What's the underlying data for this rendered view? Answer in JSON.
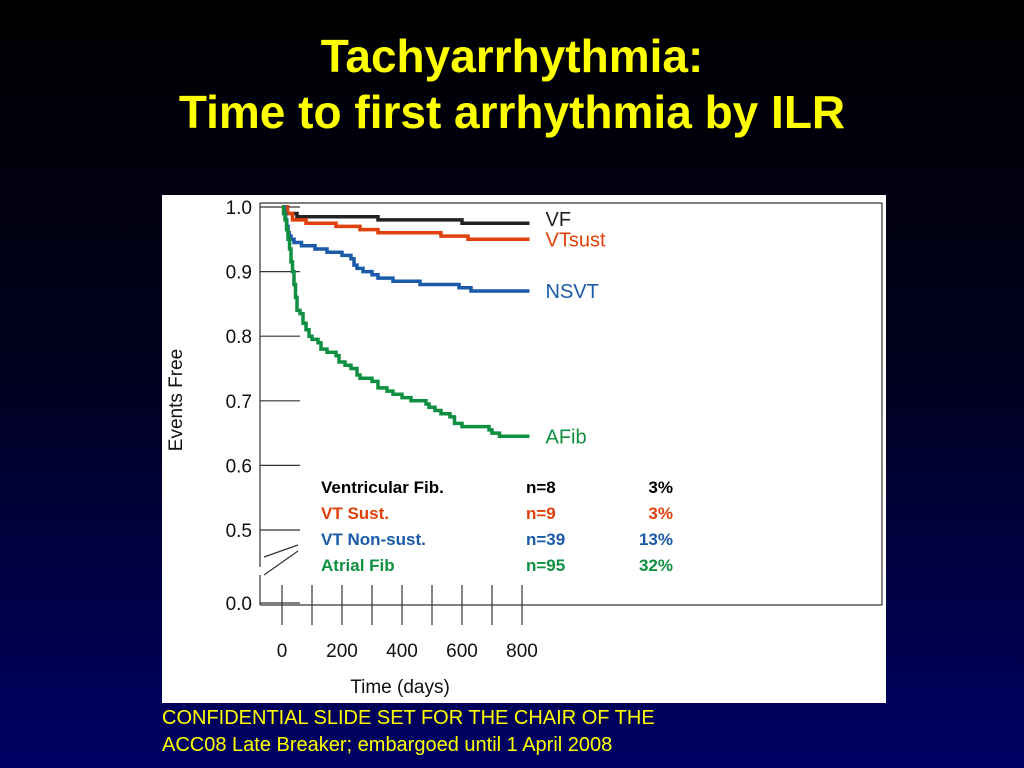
{
  "slide": {
    "title_line1": "Tachyarrhythmia:",
    "title_line2": "Time to first arrhythmia by ILR",
    "footer_line1": "CONFIDENTIAL SLIDE  SET  FOR THE  CHAIR OF THE",
    "footer_line2": "ACC08 Late Breaker;  embargoed until 1 April 2008",
    "title_color": "#ffff00",
    "background_colors": [
      "#000000",
      "#000064"
    ]
  },
  "chart_data": {
    "type": "line",
    "subtype": "kaplan-meier step curves",
    "xlabel": "Time (days)",
    "ylabel": "Events Free",
    "xlim": [
      0,
      1000
    ],
    "x_ticks": [
      0,
      200,
      400,
      600,
      800
    ],
    "x_tick_labels": [
      "0",
      "200",
      "400",
      "600",
      "800"
    ],
    "x_minor_ticks": [
      100,
      300,
      500,
      700
    ],
    "y_ticks": [
      0.0,
      0.5,
      0.6,
      0.7,
      0.8,
      0.9,
      1.0
    ],
    "y_tick_labels": [
      "0.0",
      "0.5",
      "0.6",
      "0.7",
      "0.8",
      "0.9",
      "1.0"
    ],
    "y_axis_break": "between 0.0 and 0.5",
    "grid": false,
    "series": [
      {
        "name": "VF",
        "color": "#222222",
        "points": [
          [
            0,
            1.0
          ],
          [
            10,
            1.0
          ],
          [
            18,
            0.99
          ],
          [
            40,
            0.99
          ],
          [
            50,
            0.985
          ],
          [
            100,
            0.985
          ],
          [
            180,
            0.985
          ],
          [
            250,
            0.985
          ],
          [
            300,
            0.985
          ],
          [
            320,
            0.98
          ],
          [
            400,
            0.98
          ],
          [
            520,
            0.98
          ],
          [
            600,
            0.975
          ],
          [
            800,
            0.975
          ],
          [
            825,
            0.975
          ]
        ]
      },
      {
        "name": "VTsust",
        "color": "#e0400a",
        "points": [
          [
            0,
            1.0
          ],
          [
            10,
            1.0
          ],
          [
            18,
            0.99
          ],
          [
            25,
            0.99
          ],
          [
            35,
            0.98
          ],
          [
            60,
            0.98
          ],
          [
            80,
            0.975
          ],
          [
            150,
            0.975
          ],
          [
            180,
            0.97
          ],
          [
            230,
            0.97
          ],
          [
            260,
            0.965
          ],
          [
            300,
            0.965
          ],
          [
            320,
            0.96
          ],
          [
            500,
            0.96
          ],
          [
            530,
            0.955
          ],
          [
            600,
            0.955
          ],
          [
            620,
            0.95
          ],
          [
            825,
            0.95
          ]
        ]
      },
      {
        "name": "NSVT",
        "color": "#1a5aa8",
        "points": [
          [
            0,
            1.0
          ],
          [
            8,
            0.99
          ],
          [
            12,
            0.98
          ],
          [
            16,
            0.97
          ],
          [
            20,
            0.96
          ],
          [
            24,
            0.955
          ],
          [
            30,
            0.95
          ],
          [
            40,
            0.945
          ],
          [
            60,
            0.945
          ],
          [
            65,
            0.94
          ],
          [
            100,
            0.94
          ],
          [
            110,
            0.935
          ],
          [
            140,
            0.935
          ],
          [
            150,
            0.93
          ],
          [
            180,
            0.93
          ],
          [
            200,
            0.925
          ],
          [
            230,
            0.92
          ],
          [
            240,
            0.91
          ],
          [
            250,
            0.905
          ],
          [
            270,
            0.9
          ],
          [
            290,
            0.9
          ],
          [
            300,
            0.895
          ],
          [
            320,
            0.89
          ],
          [
            360,
            0.89
          ],
          [
            370,
            0.885
          ],
          [
            450,
            0.885
          ],
          [
            460,
            0.88
          ],
          [
            580,
            0.88
          ],
          [
            590,
            0.875
          ],
          [
            620,
            0.875
          ],
          [
            630,
            0.87
          ],
          [
            825,
            0.87
          ]
        ]
      },
      {
        "name": "AFib",
        "color": "#0e9040",
        "points": [
          [
            0,
            1.0
          ],
          [
            5,
            0.99
          ],
          [
            10,
            0.98
          ],
          [
            15,
            0.965
          ],
          [
            20,
            0.95
          ],
          [
            25,
            0.935
          ],
          [
            30,
            0.915
          ],
          [
            35,
            0.9
          ],
          [
            40,
            0.88
          ],
          [
            45,
            0.86
          ],
          [
            50,
            0.84
          ],
          [
            60,
            0.835
          ],
          [
            70,
            0.82
          ],
          [
            80,
            0.81
          ],
          [
            90,
            0.8
          ],
          [
            100,
            0.795
          ],
          [
            120,
            0.79
          ],
          [
            130,
            0.78
          ],
          [
            150,
            0.775
          ],
          [
            180,
            0.77
          ],
          [
            190,
            0.76
          ],
          [
            210,
            0.755
          ],
          [
            230,
            0.75
          ],
          [
            250,
            0.74
          ],
          [
            260,
            0.735
          ],
          [
            300,
            0.73
          ],
          [
            320,
            0.72
          ],
          [
            350,
            0.715
          ],
          [
            370,
            0.71
          ],
          [
            400,
            0.705
          ],
          [
            430,
            0.7
          ],
          [
            480,
            0.695
          ],
          [
            490,
            0.69
          ],
          [
            510,
            0.685
          ],
          [
            530,
            0.68
          ],
          [
            560,
            0.675
          ],
          [
            575,
            0.665
          ],
          [
            600,
            0.66
          ],
          [
            660,
            0.66
          ],
          [
            690,
            0.655
          ],
          [
            700,
            0.65
          ],
          [
            720,
            0.65
          ],
          [
            725,
            0.645
          ],
          [
            825,
            0.645
          ]
        ]
      }
    ],
    "end_labels": [
      {
        "text": "VF",
        "color": "#222222"
      },
      {
        "text": "VTsust",
        "color": "#e0400a"
      },
      {
        "text": "NSVT",
        "color": "#1a5aa8"
      },
      {
        "text": "AFib",
        "color": "#0e9040"
      }
    ],
    "summary_table": [
      {
        "label": "Ventricular Fib.",
        "n": "n=8",
        "pct": "3%",
        "color": "#000000"
      },
      {
        "label": "VT Sust.",
        "n": "n=9",
        "pct": "3%",
        "color": "#e0400a"
      },
      {
        "label": "VT Non-sust.",
        "n": "n=39",
        "pct": "13%",
        "color": "#1a5aa8"
      },
      {
        "label": "Atrial Fib",
        "n": "n=95",
        "pct": "32%",
        "color": "#0e9040"
      }
    ]
  }
}
